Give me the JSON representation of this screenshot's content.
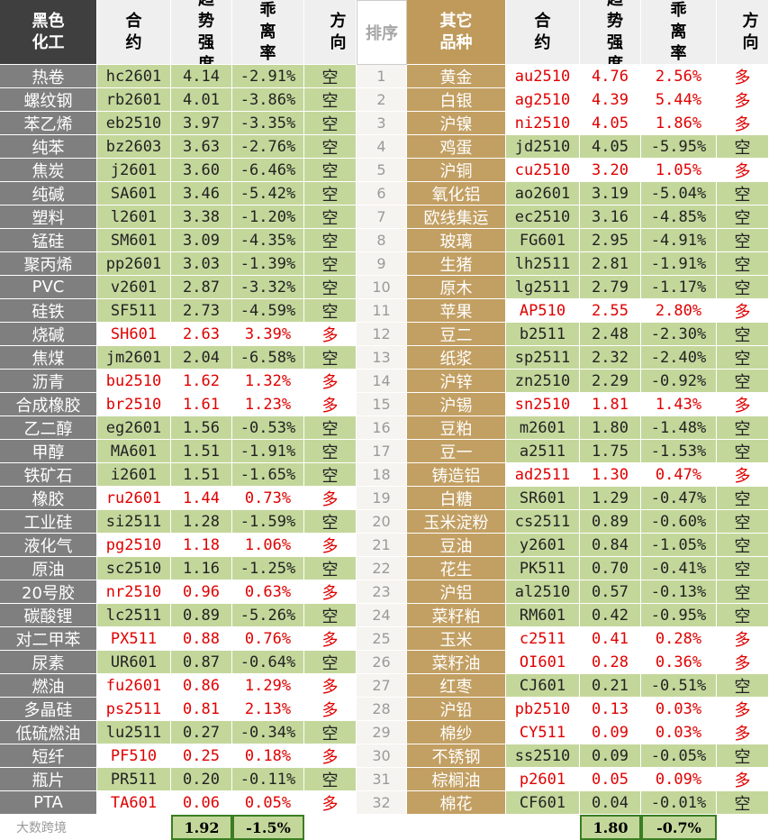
{
  "left": {
    "header": [
      "黑色化工",
      "合约",
      "趋势强度",
      "乖离率",
      "方向"
    ],
    "rows": [
      [
        "热卷",
        "hc2601",
        "4.14",
        "-2.91%",
        "空"
      ],
      [
        "螺纹钢",
        "rb2601",
        "4.01",
        "-3.86%",
        "空"
      ],
      [
        "苯乙烯",
        "eb2510",
        "3.97",
        "-3.35%",
        "空"
      ],
      [
        "纯苯",
        "bz2603",
        "3.63",
        "-2.76%",
        "空"
      ],
      [
        "焦炭",
        "j2601",
        "3.60",
        "-6.46%",
        "空"
      ],
      [
        "纯碱",
        "SA601",
        "3.46",
        "-5.42%",
        "空"
      ],
      [
        "塑料",
        "l2601",
        "3.38",
        "-1.20%",
        "空"
      ],
      [
        "锰硅",
        "SM601",
        "3.09",
        "-4.35%",
        "空"
      ],
      [
        "聚丙烯",
        "pp2601",
        "3.03",
        "-1.39%",
        "空"
      ],
      [
        "PVC",
        "v2601",
        "2.87",
        "-3.32%",
        "空"
      ],
      [
        "硅铁",
        "SF511",
        "2.73",
        "-4.59%",
        "空"
      ],
      [
        "烧碱",
        "SH601",
        "2.63",
        "3.39%",
        "多"
      ],
      [
        "焦煤",
        "jm2601",
        "2.04",
        "-6.58%",
        "空"
      ],
      [
        "沥青",
        "bu2510",
        "1.62",
        "1.32%",
        "多"
      ],
      [
        "合成橡胶",
        "br2510",
        "1.61",
        "1.23%",
        "多"
      ],
      [
        "乙二醇",
        "eg2601",
        "1.56",
        "-0.53%",
        "空"
      ],
      [
        "甲醇",
        "MA601",
        "1.51",
        "-1.91%",
        "空"
      ],
      [
        "铁矿石",
        "i2601",
        "1.51",
        "-1.65%",
        "空"
      ],
      [
        "橡胶",
        "ru2601",
        "1.44",
        "0.73%",
        "多"
      ],
      [
        "工业硅",
        "si2511",
        "1.28",
        "-1.59%",
        "空"
      ],
      [
        "液化气",
        "pg2510",
        "1.18",
        "1.06%",
        "多"
      ],
      [
        "原油",
        "sc2510",
        "1.16",
        "-1.25%",
        "空"
      ],
      [
        "20号胶",
        "nr2510",
        "0.96",
        "0.63%",
        "多"
      ],
      [
        "碳酸锂",
        "lc2511",
        "0.89",
        "-5.26%",
        "空"
      ],
      [
        "对二甲苯",
        "PX511",
        "0.88",
        "0.76%",
        "多"
      ],
      [
        "尿素",
        "UR601",
        "0.87",
        "-0.64%",
        "空"
      ],
      [
        "燃油",
        "fu2601",
        "0.86",
        "1.29%",
        "多"
      ],
      [
        "多晶硅",
        "ps2511",
        "0.81",
        "2.13%",
        "多"
      ],
      [
        "低硫燃油",
        "lu2511",
        "0.27",
        "-0.34%",
        "空"
      ],
      [
        "短纤",
        "PF510",
        "0.25",
        "0.18%",
        "多"
      ],
      [
        "瓶片",
        "PR511",
        "0.20",
        "-0.11%",
        "空"
      ],
      [
        "PTA",
        "TA601",
        "0.06",
        "0.05%",
        "多"
      ]
    ],
    "footer": [
      "1.92",
      "-1.5%"
    ]
  },
  "rank": {
    "header": "排序",
    "values": [
      1,
      2,
      3,
      4,
      5,
      6,
      7,
      8,
      9,
      10,
      11,
      12,
      13,
      14,
      15,
      16,
      17,
      18,
      19,
      20,
      21,
      22,
      23,
      24,
      25,
      26,
      27,
      28,
      29,
      30,
      31,
      32
    ]
  },
  "right": {
    "header": [
      "其它品种",
      "合约",
      "趋势强度",
      "乖离率",
      "方向"
    ],
    "rows": [
      [
        "黄金",
        "au2510",
        "4.76",
        "2.56%",
        "多"
      ],
      [
        "白银",
        "ag2510",
        "4.39",
        "5.44%",
        "多"
      ],
      [
        "沪镍",
        "ni2510",
        "4.05",
        "1.86%",
        "多"
      ],
      [
        "鸡蛋",
        "jd2510",
        "4.05",
        "-5.95%",
        "空"
      ],
      [
        "沪铜",
        "cu2510",
        "3.20",
        "1.05%",
        "多"
      ],
      [
        "氧化铝",
        "ao2601",
        "3.19",
        "-5.04%",
        "空"
      ],
      [
        "欧线集运",
        "ec2510",
        "3.16",
        "-4.85%",
        "空"
      ],
      [
        "玻璃",
        "FG601",
        "2.95",
        "-4.91%",
        "空"
      ],
      [
        "生猪",
        "lh2511",
        "2.81",
        "-1.91%",
        "空"
      ],
      [
        "原木",
        "lg2511",
        "2.79",
        "-1.17%",
        "空"
      ],
      [
        "苹果",
        "AP510",
        "2.55",
        "2.80%",
        "多"
      ],
      [
        "豆二",
        "b2511",
        "2.48",
        "-2.30%",
        "空"
      ],
      [
        "纸浆",
        "sp2511",
        "2.32",
        "-2.40%",
        "空"
      ],
      [
        "沪锌",
        "zn2510",
        "2.29",
        "-0.92%",
        "空"
      ],
      [
        "沪锡",
        "sn2510",
        "1.81",
        "1.43%",
        "多"
      ],
      [
        "豆粕",
        "m2601",
        "1.80",
        "-1.48%",
        "空"
      ],
      [
        "豆一",
        "a2511",
        "1.75",
        "-1.53%",
        "空"
      ],
      [
        "铸造铝",
        "ad2511",
        "1.30",
        "0.47%",
        "多"
      ],
      [
        "白糖",
        "SR601",
        "1.29",
        "-0.47%",
        "空"
      ],
      [
        "玉米淀粉",
        "cs2511",
        "0.89",
        "-0.60%",
        "空"
      ],
      [
        "豆油",
        "y2601",
        "0.84",
        "-1.05%",
        "空"
      ],
      [
        "花生",
        "PK511",
        "0.70",
        "-0.41%",
        "空"
      ],
      [
        "沪铝",
        "al2510",
        "0.57",
        "-0.13%",
        "空"
      ],
      [
        "菜籽粕",
        "RM601",
        "0.42",
        "-0.95%",
        "空"
      ],
      [
        "玉米",
        "c2511",
        "0.41",
        "0.28%",
        "多"
      ],
      [
        "菜籽油",
        "OI601",
        "0.28",
        "0.36%",
        "多"
      ],
      [
        "红枣",
        "CJ601",
        "0.21",
        "-0.51%",
        "空"
      ],
      [
        "沪铅",
        "pb2510",
        "0.13",
        "0.03%",
        "多"
      ],
      [
        "棉纱",
        "CY511",
        "0.09",
        "0.03%",
        "多"
      ],
      [
        "不锈钢",
        "ss2510",
        "0.09",
        "-0.05%",
        "空"
      ],
      [
        "棕榈油",
        "p2601",
        "0.05",
        "0.09%",
        "多"
      ],
      [
        "棉花",
        "CF601",
        "0.04",
        "-0.01%",
        "空"
      ]
    ],
    "footer": [
      "1.80",
      "-0.7%"
    ]
  },
  "logo": "大数跨境"
}
